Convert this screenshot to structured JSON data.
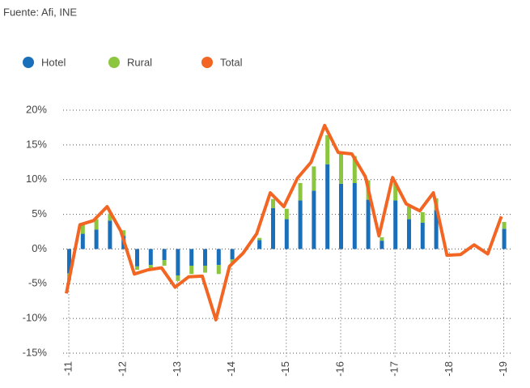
{
  "chart_data": {
    "type": "bar_line",
    "source": "Fuente: Afi, INE",
    "categories": [
      "-11",
      null,
      null,
      null,
      "-12",
      null,
      null,
      null,
      "-13",
      null,
      null,
      null,
      "-14",
      null,
      null,
      null,
      "-15",
      null,
      null,
      null,
      "-16",
      null,
      null,
      null,
      "-17",
      null,
      null,
      null,
      "-18",
      null,
      null,
      null,
      "-19"
    ],
    "series": [
      {
        "name": "Hotel",
        "type": "bar",
        "color": "#1a6fba",
        "values": [
          -3.5,
          2.2,
          2.8,
          4.1,
          1.9,
          -2.5,
          -2.3,
          -1.6,
          -3.8,
          -2.4,
          -2.4,
          -2.3,
          -1.5,
          0,
          1.3,
          5.9,
          4.3,
          7.0,
          8.4,
          12.2,
          9.4,
          9.5,
          7.1,
          1.2,
          7.0,
          4.3,
          3.8,
          5.6,
          null,
          null,
          null,
          null,
          2.9
        ]
      },
      {
        "name": "Rural",
        "type": "bar",
        "color": "#8cc63f",
        "values": [
          -1.0,
          1.3,
          1.5,
          1.0,
          0.8,
          -0.5,
          -0.5,
          -0.8,
          -0.8,
          -1.2,
          -1.0,
          -1.3,
          -0.5,
          0,
          0.3,
          1.3,
          1.5,
          2.5,
          3.5,
          4.2,
          4.5,
          3.9,
          2.8,
          0.5,
          2.5,
          1.8,
          1.5,
          1.7,
          null,
          null,
          null,
          null,
          1.0
        ]
      },
      {
        "name": "Total",
        "type": "line",
        "color": "#f26522",
        "values": [
          -6.4,
          3.5,
          4.1,
          6.1,
          2.6,
          -3.6,
          -3.0,
          -2.7,
          -5.5,
          -4.0,
          -3.9,
          -10.2,
          -2.5,
          -0.6,
          2.2,
          8.1,
          6.1,
          10.2,
          12.5,
          17.8,
          13.9,
          13.7,
          10.4,
          1.9,
          10.3,
          6.5,
          5.5,
          8.1,
          -0.9,
          -0.8,
          0.6,
          -0.7,
          4.7
        ]
      }
    ],
    "ylim": [
      -15,
      20
    ],
    "yticks": [
      {
        "value": -15,
        "label": "-15%"
      },
      {
        "value": -10,
        "label": "-10%"
      },
      {
        "value": -5,
        "label": "-5%"
      },
      {
        "value": 0,
        "label": "0%"
      },
      {
        "value": 5,
        "label": "5%"
      },
      {
        "value": 10,
        "label": "10%"
      },
      {
        "value": 15,
        "label": "15%"
      },
      {
        "value": 20,
        "label": "20%"
      }
    ],
    "grid": true
  }
}
